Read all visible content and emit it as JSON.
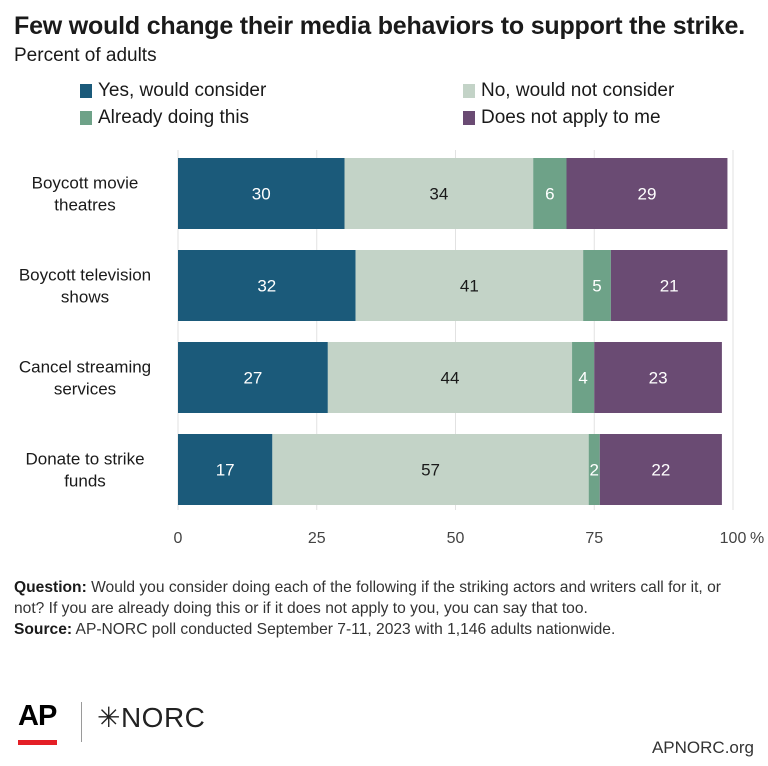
{
  "title": "Few would change their media behaviors to support the strike.",
  "subtitle": "Percent of adults",
  "legend": [
    {
      "label": "Yes, would consider",
      "color": "#1b5a7a"
    },
    {
      "label": "No, would not consider",
      "color": "#c3d3c7"
    },
    {
      "label": "Already doing this",
      "color": "#6ea288"
    },
    {
      "label": "Does not apply to me",
      "color": "#6a4b73"
    }
  ],
  "chart_data": {
    "type": "bar",
    "orientation": "horizontal",
    "stacked": true,
    "categories": [
      [
        "Boycott movie",
        "theatres"
      ],
      [
        "Boycott television",
        "shows"
      ],
      [
        "Cancel streaming",
        "services"
      ],
      [
        "Donate to strike",
        "funds"
      ]
    ],
    "series": [
      {
        "name": "Yes, would consider",
        "color": "#1b5a7a",
        "label_color": "#ffffff",
        "values": [
          30,
          32,
          27,
          17
        ]
      },
      {
        "name": "No, would not consider",
        "color": "#c3d3c7",
        "label_color": "#1a1a1a",
        "values": [
          34,
          41,
          44,
          57
        ]
      },
      {
        "name": "Already doing this",
        "color": "#6ea288",
        "label_color": "#ffffff",
        "values": [
          6,
          5,
          4,
          2
        ]
      },
      {
        "name": "Does not apply to me",
        "color": "#6a4b73",
        "label_color": "#ffffff",
        "values": [
          29,
          21,
          23,
          22
        ]
      }
    ],
    "xlim": [
      0,
      100
    ],
    "xticks": [
      0,
      25,
      50,
      75,
      100
    ],
    "xtick_labels": [
      "0",
      "25",
      "50",
      "75",
      "100"
    ],
    "x_unit": "%",
    "grid": "vertical",
    "legend_position": "top"
  },
  "footer": {
    "question_label": "Question:",
    "question_text": "Would you consider doing each of the following if the striking actors and writers call for it, or not? If you are already doing this or if it does not apply to you, you can say that too.",
    "source_label": "Source:",
    "source_text": "AP-NORC poll conducted September 7-11, 2023 with 1,146 adults nationwide."
  },
  "logos": {
    "ap": "AP",
    "norc": "✳NORC"
  },
  "site": "APNORC.org"
}
